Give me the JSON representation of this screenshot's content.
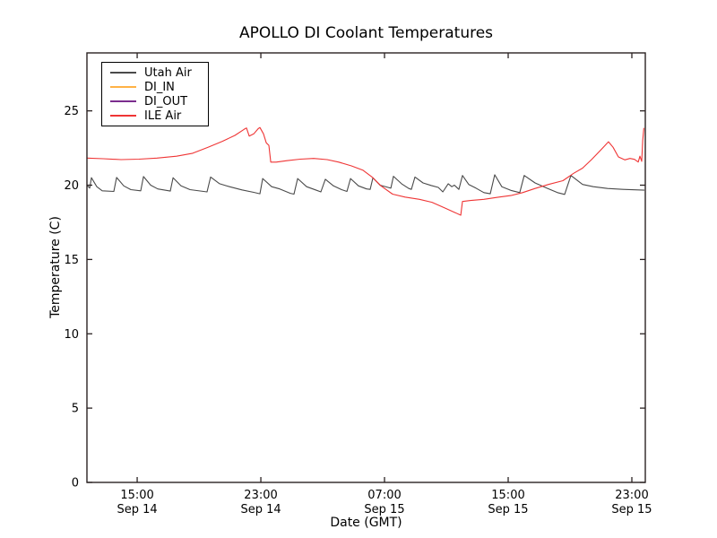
{
  "window": {
    "background": "#ffffff"
  },
  "chart_data": {
    "type": "line",
    "title": "APOLLO DI Coolant Temperatures",
    "xlabel": "Date (GMT)",
    "ylabel": "Temperature (C)",
    "grid": false,
    "legend_position": "upper left",
    "x_unit": "hours since Sep 14 00:00 GMT",
    "xlim": [
      11.75,
      47.87
    ],
    "ylim": [
      0,
      28.9
    ],
    "yticks": [
      0,
      5,
      10,
      15,
      20,
      25
    ],
    "xticks": [
      {
        "t": 15,
        "time": "15:00",
        "date": "Sep 14"
      },
      {
        "t": 23,
        "time": "23:00",
        "date": "Sep 14"
      },
      {
        "t": 31,
        "time": "07:00",
        "date": "Sep 15"
      },
      {
        "t": 39,
        "time": "15:00",
        "date": "Sep 15"
      },
      {
        "t": 47,
        "time": "23:00",
        "date": "Sep 15"
      }
    ],
    "axis_color": "#2a2222",
    "series": [
      {
        "name": "Utah Air",
        "color": "#4a4a4a",
        "points": [
          [
            11.75,
            20.0
          ],
          [
            11.93,
            19.8
          ],
          [
            12.04,
            20.5
          ],
          [
            12.39,
            19.9
          ],
          [
            12.74,
            19.62
          ],
          [
            13.49,
            19.58
          ],
          [
            13.67,
            20.52
          ],
          [
            14.13,
            19.95
          ],
          [
            14.59,
            19.7
          ],
          [
            15.23,
            19.62
          ],
          [
            15.41,
            20.58
          ],
          [
            15.87,
            20.0
          ],
          [
            16.33,
            19.75
          ],
          [
            17.14,
            19.6
          ],
          [
            17.32,
            20.5
          ],
          [
            17.84,
            19.95
          ],
          [
            18.42,
            19.7
          ],
          [
            19.52,
            19.55
          ],
          [
            19.75,
            20.55
          ],
          [
            20.33,
            20.1
          ],
          [
            20.97,
            19.9
          ],
          [
            21.78,
            19.68
          ],
          [
            22.54,
            19.52
          ],
          [
            22.94,
            19.42
          ],
          [
            23.12,
            20.45
          ],
          [
            23.7,
            19.9
          ],
          [
            24.22,
            19.75
          ],
          [
            24.91,
            19.45
          ],
          [
            25.14,
            19.4
          ],
          [
            25.38,
            20.45
          ],
          [
            25.96,
            19.9
          ],
          [
            26.54,
            19.68
          ],
          [
            26.88,
            19.55
          ],
          [
            27.17,
            20.4
          ],
          [
            27.7,
            19.95
          ],
          [
            28.22,
            19.7
          ],
          [
            28.57,
            19.58
          ],
          [
            28.8,
            20.45
          ],
          [
            29.32,
            19.95
          ],
          [
            29.84,
            19.75
          ],
          [
            30.07,
            19.72
          ],
          [
            30.25,
            20.5
          ],
          [
            30.71,
            20.0
          ],
          [
            31.23,
            19.85
          ],
          [
            31.41,
            19.8
          ],
          [
            31.58,
            20.6
          ],
          [
            32.1,
            20.1
          ],
          [
            32.57,
            19.78
          ],
          [
            32.74,
            19.72
          ],
          [
            32.97,
            20.55
          ],
          [
            33.49,
            20.15
          ],
          [
            34.01,
            19.98
          ],
          [
            34.48,
            19.85
          ],
          [
            34.77,
            19.55
          ],
          [
            35.12,
            20.1
          ],
          [
            35.35,
            19.9
          ],
          [
            35.52,
            20.0
          ],
          [
            35.81,
            19.72
          ],
          [
            36.04,
            20.65
          ],
          [
            36.45,
            20.05
          ],
          [
            36.91,
            19.8
          ],
          [
            37.43,
            19.5
          ],
          [
            37.84,
            19.42
          ],
          [
            38.13,
            20.7
          ],
          [
            38.59,
            19.9
          ],
          [
            39.17,
            19.65
          ],
          [
            39.75,
            19.5
          ],
          [
            40.04,
            20.65
          ],
          [
            40.74,
            20.15
          ],
          [
            41.49,
            19.8
          ],
          [
            42.19,
            19.5
          ],
          [
            42.65,
            19.38
          ],
          [
            43.06,
            20.65
          ],
          [
            43.81,
            20.05
          ],
          [
            44.51,
            19.9
          ],
          [
            45.43,
            19.78
          ],
          [
            46.42,
            19.72
          ],
          [
            47.81,
            19.66
          ]
        ]
      },
      {
        "name": "DI_IN",
        "color": "#ffb246",
        "points": []
      },
      {
        "name": "DI_OUT",
        "color": "#7b2d8e",
        "points": []
      },
      {
        "name": "ILE Air",
        "color": "#ef3535",
        "points": [
          [
            11.75,
            21.82
          ],
          [
            12.8,
            21.78
          ],
          [
            13.96,
            21.72
          ],
          [
            15.12,
            21.75
          ],
          [
            16.28,
            21.82
          ],
          [
            17.55,
            21.95
          ],
          [
            18.59,
            22.15
          ],
          [
            19.58,
            22.55
          ],
          [
            20.51,
            22.95
          ],
          [
            21.32,
            23.35
          ],
          [
            21.9,
            23.75
          ],
          [
            22.07,
            23.85
          ],
          [
            22.25,
            23.3
          ],
          [
            22.54,
            23.45
          ],
          [
            22.83,
            23.8
          ],
          [
            22.94,
            23.88
          ],
          [
            23.17,
            23.45
          ],
          [
            23.35,
            22.85
          ],
          [
            23.52,
            22.68
          ],
          [
            23.64,
            21.55
          ],
          [
            23.99,
            21.55
          ],
          [
            24.68,
            21.65
          ],
          [
            25.55,
            21.75
          ],
          [
            26.42,
            21.8
          ],
          [
            27.29,
            21.72
          ],
          [
            28.04,
            21.55
          ],
          [
            28.86,
            21.3
          ],
          [
            29.61,
            21.0
          ],
          [
            30.19,
            20.55
          ],
          [
            30.77,
            19.95
          ],
          [
            31.52,
            19.4
          ],
          [
            32.33,
            19.2
          ],
          [
            33.26,
            19.05
          ],
          [
            34.07,
            18.85
          ],
          [
            34.94,
            18.45
          ],
          [
            35.58,
            18.15
          ],
          [
            35.93,
            17.98
          ],
          [
            36.04,
            18.9
          ],
          [
            36.57,
            18.97
          ],
          [
            37.43,
            19.05
          ],
          [
            38.3,
            19.18
          ],
          [
            39.17,
            19.3
          ],
          [
            39.93,
            19.5
          ],
          [
            40.74,
            19.78
          ],
          [
            41.61,
            20.05
          ],
          [
            42.54,
            20.3
          ],
          [
            43.23,
            20.8
          ],
          [
            43.81,
            21.15
          ],
          [
            44.39,
            21.72
          ],
          [
            44.97,
            22.35
          ],
          [
            45.49,
            22.92
          ],
          [
            45.78,
            22.55
          ],
          [
            46.13,
            21.9
          ],
          [
            46.54,
            21.7
          ],
          [
            46.88,
            21.8
          ],
          [
            47.17,
            21.74
          ],
          [
            47.41,
            21.56
          ],
          [
            47.52,
            21.95
          ],
          [
            47.64,
            21.6
          ],
          [
            47.7,
            23.0
          ],
          [
            47.78,
            23.85
          ]
        ]
      }
    ]
  }
}
